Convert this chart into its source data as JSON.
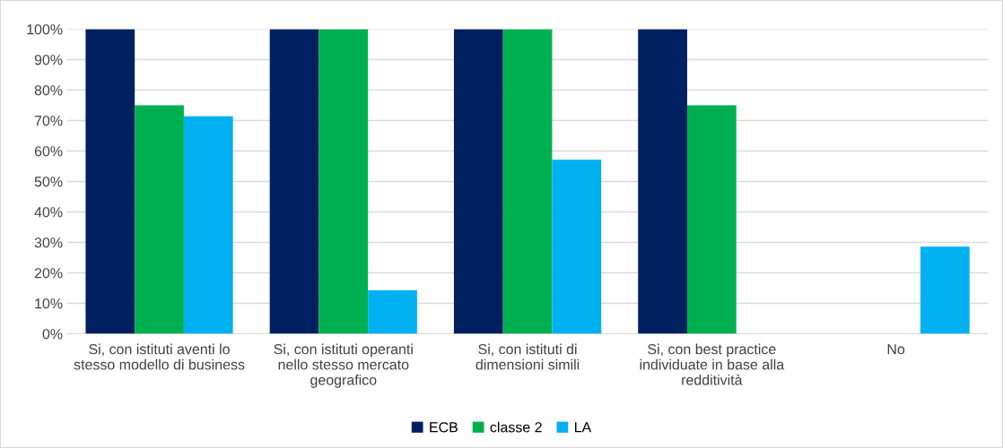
{
  "chart_data": {
    "type": "bar",
    "categories": [
      "Si, con istituti aventi lo\nstesso modello di business",
      "Si, con istituti operanti\nnello stesso mercato\ngeografico",
      "Si, con istituti di\ndimensioni simili",
      "Si, con best practice\nindividuate in base alla\nredditività",
      "No"
    ],
    "series": [
      {
        "name": "ECB",
        "color": "#002060",
        "values": [
          100,
          100,
          100,
          100,
          0
        ]
      },
      {
        "name": "classe 2",
        "color": "#00b050",
        "values": [
          75,
          100,
          100,
          75,
          0
        ]
      },
      {
        "name": "LA",
        "color": "#00b0f0",
        "values": [
          71.4,
          14.3,
          57.1,
          0,
          28.6
        ]
      }
    ],
    "ylim": [
      0,
      100
    ],
    "yticks": [
      {
        "value": 0,
        "label": "0%"
      },
      {
        "value": 10,
        "label": "10%"
      },
      {
        "value": 20,
        "label": "20%"
      },
      {
        "value": 30,
        "label": "30%"
      },
      {
        "value": 40,
        "label": "40%"
      },
      {
        "value": 50,
        "label": "50%"
      },
      {
        "value": 60,
        "label": "60%"
      },
      {
        "value": 70,
        "label": "70%"
      },
      {
        "value": 80,
        "label": "80%"
      },
      {
        "value": 90,
        "label": "90%"
      },
      {
        "value": 100,
        "label": "100%"
      }
    ],
    "grid": "y",
    "legend": "bottom"
  }
}
